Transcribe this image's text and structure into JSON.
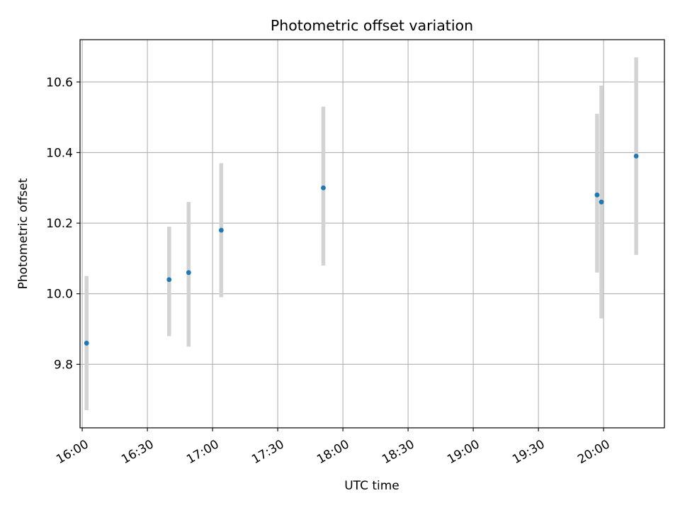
{
  "chart_data": {
    "type": "scatter",
    "title": "Photometric offset variation",
    "xlabel": "UTC time",
    "ylabel": "Photometric offset",
    "x_ticks": [
      "16:00",
      "16:30",
      "17:00",
      "17:30",
      "18:00",
      "18:30",
      "19:00",
      "19:30",
      "20:00"
    ],
    "x_tick_minutes": [
      960,
      990,
      1020,
      1050,
      1080,
      1110,
      1140,
      1170,
      1200
    ],
    "y_ticks": [
      "9.8",
      "10.0",
      "10.2",
      "10.4",
      "10.6"
    ],
    "y_tick_values": [
      9.8,
      10.0,
      10.2,
      10.4,
      10.6
    ],
    "xlim": [
      "15:59",
      "20:28"
    ],
    "ylim": [
      9.62,
      10.72
    ],
    "grid": true,
    "marker_color": "#1f77b4",
    "errorbar_color": "#d3d3d3",
    "points": [
      {
        "x": "16:02",
        "y": 9.86,
        "ylow": 9.67,
        "yhigh": 10.05
      },
      {
        "x": "16:40",
        "y": 10.04,
        "ylow": 9.88,
        "yhigh": 10.19
      },
      {
        "x": "16:49",
        "y": 10.06,
        "ylow": 9.85,
        "yhigh": 10.26
      },
      {
        "x": "17:04",
        "y": 10.18,
        "ylow": 9.99,
        "yhigh": 10.37
      },
      {
        "x": "17:51",
        "y": 10.3,
        "ylow": 10.08,
        "yhigh": 10.53
      },
      {
        "x": "19:57",
        "y": 10.28,
        "ylow": 10.06,
        "yhigh": 10.51
      },
      {
        "x": "19:59",
        "y": 10.26,
        "ylow": 9.93,
        "yhigh": 10.59
      },
      {
        "x": "20:15",
        "y": 10.39,
        "ylow": 10.11,
        "yhigh": 10.67
      }
    ]
  }
}
